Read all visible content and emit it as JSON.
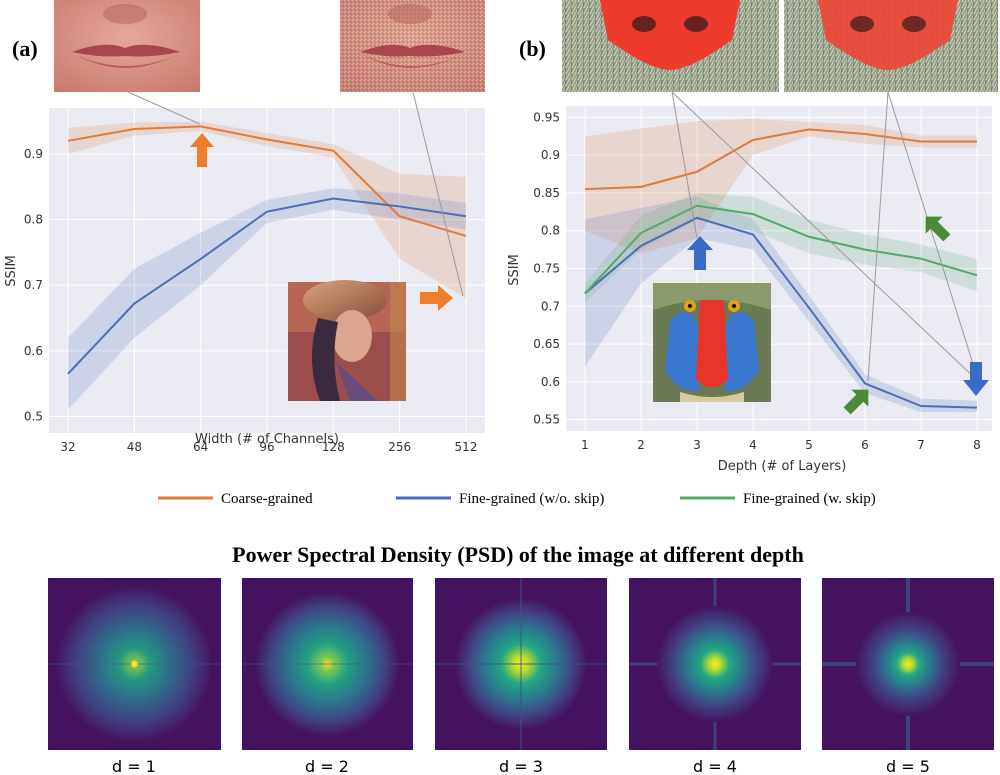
{
  "colors": {
    "coarse": "#e07b39",
    "fine": "#4c6eb5",
    "fine_skip": "#55a868",
    "plot_bg": "#eaeaf2",
    "psd_bg": "#44135f"
  },
  "chart_data": [
    {
      "type": "line",
      "panel_label": "(a)",
      "xlabel": "Width (# of Channels)",
      "ylabel": "SSIM",
      "categories": [
        "32",
        "48",
        "64",
        "96",
        "128",
        "256",
        "512"
      ],
      "ylim": [
        0.49,
        0.97
      ],
      "yticks": [
        0.5,
        0.6,
        0.7,
        0.8,
        0.9
      ],
      "grid": true,
      "series": [
        {
          "name": "Coarse-grained",
          "color_key": "coarse",
          "values": [
            0.92,
            0.938,
            0.942,
            0.922,
            0.905,
            0.805,
            0.775
          ],
          "lower": [
            0.9,
            0.928,
            0.935,
            0.912,
            0.895,
            0.74,
            0.68
          ],
          "upper": [
            0.94,
            0.948,
            0.949,
            0.932,
            0.915,
            0.87,
            0.865
          ]
        },
        {
          "name": "Fine-grained (w/o. skip)",
          "color_key": "fine",
          "values": [
            0.565,
            0.672,
            0.74,
            0.812,
            0.832,
            0.82,
            0.805
          ],
          "lower": [
            0.51,
            0.62,
            0.7,
            0.795,
            0.815,
            0.8,
            0.785
          ],
          "upper": [
            0.62,
            0.725,
            0.78,
            0.83,
            0.848,
            0.84,
            0.825
          ]
        }
      ]
    },
    {
      "type": "line",
      "panel_label": "(b)",
      "xlabel": "Depth (# of Layers)",
      "ylabel": "SSIM",
      "categories": [
        "1",
        "2",
        "3",
        "4",
        "5",
        "6",
        "7",
        "8"
      ],
      "ylim": [
        0.535,
        0.965
      ],
      "yticks": [
        0.55,
        0.6,
        0.65,
        0.7,
        0.75,
        0.8,
        0.85,
        0.9,
        0.95
      ],
      "grid": true,
      "series": [
        {
          "name": "Coarse-grained",
          "color_key": "coarse",
          "values": [
            0.855,
            0.858,
            0.878,
            0.92,
            0.934,
            0.928,
            0.918,
            0.918
          ],
          "lower": [
            0.8,
            0.77,
            0.79,
            0.9,
            0.925,
            0.915,
            0.91,
            0.91
          ],
          "upper": [
            0.925,
            0.935,
            0.945,
            0.948,
            0.944,
            0.94,
            0.926,
            0.926
          ]
        },
        {
          "name": "Fine-grained (w/o. skip)",
          "color_key": "fine",
          "values": [
            0.717,
            0.78,
            0.817,
            0.795,
            0.698,
            0.598,
            0.568,
            0.566
          ],
          "lower": [
            0.62,
            0.73,
            0.79,
            0.775,
            0.68,
            0.585,
            0.56,
            0.56
          ],
          "upper": [
            0.815,
            0.83,
            0.845,
            0.815,
            0.715,
            0.61,
            0.578,
            0.575
          ]
        },
        {
          "name": "Fine-grained (w. skip)",
          "color_key": "fine_skip",
          "values": [
            0.717,
            0.797,
            0.833,
            0.822,
            0.792,
            0.775,
            0.763,
            0.741
          ],
          "lower": [
            0.705,
            0.775,
            0.815,
            0.8,
            0.77,
            0.755,
            0.745,
            0.72
          ],
          "upper": [
            0.73,
            0.82,
            0.85,
            0.845,
            0.815,
            0.795,
            0.782,
            0.762
          ]
        }
      ]
    }
  ],
  "legend": [
    {
      "label": "Coarse-grained",
      "color_key": "coarse"
    },
    {
      "label": "Fine-grained (w/o. skip)",
      "color_key": "fine"
    },
    {
      "label": "Fine-grained (w. skip)",
      "color_key": "fine_skip"
    }
  ],
  "psd": {
    "title": "Power Spectral Density (PSD) of the image at different depth",
    "captions": [
      "d = 1",
      "d = 2",
      "d = 3",
      "d = 4",
      "d = 5"
    ]
  }
}
